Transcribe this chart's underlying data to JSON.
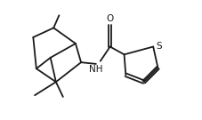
{
  "bg_color": "#ffffff",
  "line_color": "#1a1a1a",
  "line_width": 1.3,
  "font_size": 7.5,
  "figsize": [
    2.28,
    1.35
  ],
  "dpi": 100,
  "xlim": [
    -0.5,
    10.5
  ],
  "ylim": [
    0.5,
    8.0
  ]
}
